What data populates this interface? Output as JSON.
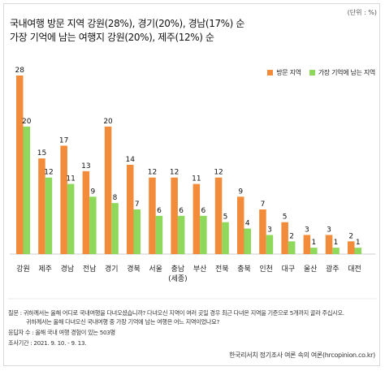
{
  "unit_label": "(단위 : %)",
  "title_line1": "국내여행 방문 지역 강원(28%), 경기(20%), 경남(17%) 순",
  "title_line2": "가장 기억에 남는 여행지 강원(20%), 제주(12%) 순",
  "colors": {
    "visit": "#f28c3a",
    "memorable": "#8ed95b"
  },
  "chart_data": {
    "type": "bar",
    "categories": [
      "강원",
      "제주",
      "경남",
      "전남",
      "경기",
      "경북",
      "서울",
      "충남",
      "부산",
      "전북",
      "충북",
      "인천",
      "대구",
      "울산",
      "광주",
      "대전"
    ],
    "category_sub": {
      "7": "(세종)"
    },
    "series": [
      {
        "name": "방문 지역",
        "values": [
          28,
          15,
          17,
          13,
          20,
          14,
          12,
          12,
          11,
          12,
          9,
          7,
          5,
          3,
          3,
          2
        ]
      },
      {
        "name": "가장 기억에 남는 지역",
        "values": [
          20,
          12,
          11,
          9,
          8,
          7,
          6,
          6,
          6,
          5,
          4,
          3,
          2,
          1,
          1,
          1
        ]
      }
    ],
    "ylim": [
      0,
      30
    ],
    "legend_position": "top-right",
    "grid": false
  },
  "footnotes": {
    "q_label": "질문 :",
    "q1": "귀하께서는 올해 어디로 국내여행을 다녀오셨습니까? 다녀오신 지역이 여러 곳일 경우 최근 다녀온 지역을 기준으로 5개까지 골라 주십시오.",
    "q2": "귀하께서는 올해 다녀오신 국내여행 중 가장 기억에 남는 여행은 어느 지역이었나요?",
    "respondents": "응답자 수 : 올해 국내 여행 경험이 있는 503명",
    "period": "조사기간 : 2021. 9. 10. - 9. 13."
  },
  "source": "한국리서치 정기조사 여론 속의 여론(hrcopinion.co.kr)"
}
